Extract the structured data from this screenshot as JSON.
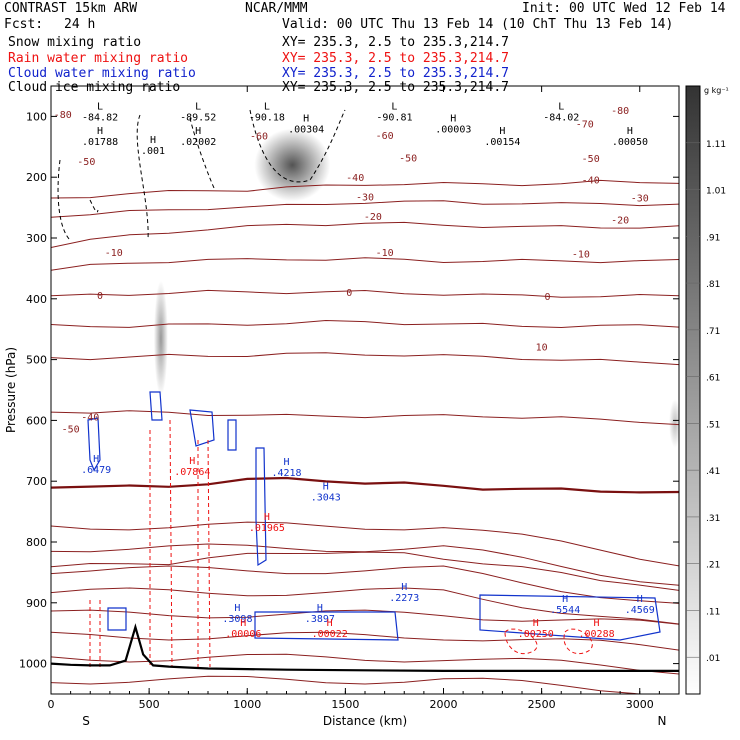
{
  "header": {
    "model": "CONTRAST 15km ARW",
    "org": "NCAR/MMM",
    "init": "Init: 00 UTC Wed 12 Feb 14",
    "fcst_label": "Fcst:",
    "fcst_value": "24 h",
    "valid": "Valid: 00 UTC Thu 13 Feb 14 (10 ChT Thu 13 Feb 14)"
  },
  "legend": [
    {
      "label": "Snow mixing ratio",
      "xy": "XY= 235.3,  2.5 to 235.3,214.7",
      "color": "#000000"
    },
    {
      "label": "Rain water mixing ratio",
      "xy": "XY= 235.3,  2.5 to 235.3,214.7",
      "color": "#ee1111"
    },
    {
      "label": "Cloud water mixing ratio",
      "xy": "XY= 235.3,  2.5 to 235.3,214.7",
      "color": "#1122cc"
    },
    {
      "label": "Cloud ice mixing ratio",
      "xy": "XY= 235.3,  2.5 to 235.3,214.7",
      "color": "#000000"
    }
  ],
  "chart_data": {
    "type": "contour-cross-section",
    "xlabel": "Distance (km)",
    "ylabel": "Pressure (hPa)",
    "xlim": [
      0,
      3200
    ],
    "ylim": [
      1050,
      50
    ],
    "x_ticks": [
      0,
      500,
      1000,
      1500,
      2000,
      2500,
      3000
    ],
    "y_ticks": [
      100,
      200,
      300,
      400,
      500,
      600,
      700,
      800,
      900,
      1000
    ],
    "x_end_labels": {
      "left": "S",
      "right": "N"
    },
    "colorbar": {
      "unit": "g kg⁻¹",
      "ticks": [
        ".01",
        ".11",
        ".21",
        ".31",
        ".41",
        ".51",
        ".61",
        ".71",
        ".81",
        ".91",
        "1.01",
        "1.11"
      ],
      "values": [
        0.01,
        0.11,
        0.21,
        0.31,
        0.41,
        0.51,
        0.61,
        0.71,
        0.81,
        0.91,
        1.01,
        1.11
      ]
    },
    "temperature_isotherms": [
      {
        "value": -80,
        "p": [
          112,
          110,
          108,
          106,
          104,
          104,
          102,
          100,
          98,
          98,
          98,
          98,
          98,
          98,
          96,
          96,
          96
        ]
      },
      {
        "value": -70,
        "p": [
          130,
          128,
          126,
          124,
          122,
          121,
          120,
          118,
          116,
          116,
          116,
          117,
          117,
          118,
          118,
          118,
          118
        ]
      },
      {
        "value": -60,
        "p": [
          160,
          154,
          150,
          146,
          143,
          141,
          139,
          138,
          137,
          138,
          139,
          140,
          141,
          141,
          141,
          141,
          141
        ]
      },
      {
        "value": -50,
        "p": [
          184,
          180,
          177,
          175,
          174,
          174,
          173,
          173,
          173,
          174,
          175,
          175,
          175,
          175,
          175,
          175,
          175
        ]
      },
      {
        "value": -40,
        "p": [
          211,
          209,
          208,
          207,
          206,
          206,
          206,
          206,
          206,
          207,
          208,
          209,
          210,
          210,
          210,
          210,
          210
        ]
      },
      {
        "value": -30,
        "p": [
          240,
          240,
          240,
          239,
          239,
          238,
          237,
          236,
          236,
          237,
          238,
          239,
          240,
          240,
          240,
          240,
          240
        ]
      },
      {
        "value": -20,
        "p": [
          272,
          272,
          271,
          270,
          270,
          269,
          268,
          268,
          268,
          269,
          270,
          271,
          272,
          274,
          275,
          276,
          277
        ]
      },
      {
        "value": -10,
        "p": [
          325,
          326,
          326,
          327,
          328,
          329,
          330,
          330,
          330,
          330,
          330,
          330,
          331,
          332,
          334,
          335,
          338
        ]
      },
      {
        "value": 0,
        "p": [
          400,
          401,
          401,
          400,
          397,
          394,
          393,
          394,
          397,
          398,
          400,
          402,
          403,
          404,
          405,
          405,
          407
        ]
      },
      {
        "value": 10,
        "p": [
          480,
          479,
          478,
          477,
          472,
          469,
          467,
          466,
          467,
          468,
          472,
          477,
          482,
          487,
          493,
          499,
          506
        ]
      }
    ],
    "isotherm_labels": [
      {
        "x": 60,
        "p": 103,
        "t": "-80"
      },
      {
        "x": 2900,
        "p": 96,
        "t": "-80"
      },
      {
        "x": 2720,
        "p": 118,
        "t": "-70"
      },
      {
        "x": 1060,
        "p": 138,
        "t": "-60"
      },
      {
        "x": 1700,
        "p": 137,
        "t": "-60"
      },
      {
        "x": 180,
        "p": 180,
        "t": "-50"
      },
      {
        "x": 1820,
        "p": 174,
        "t": "-50"
      },
      {
        "x": 2750,
        "p": 175,
        "t": "-50"
      },
      {
        "x": 1550,
        "p": 206,
        "t": "-40"
      },
      {
        "x": 2750,
        "p": 210,
        "t": "-40"
      },
      {
        "x": 1600,
        "p": 238,
        "t": "-30"
      },
      {
        "x": 3000,
        "p": 240,
        "t": "-30"
      },
      {
        "x": 1640,
        "p": 270,
        "t": "-20"
      },
      {
        "x": 2900,
        "p": 276,
        "t": "-20"
      },
      {
        "x": 320,
        "p": 330,
        "t": "-10"
      },
      {
        "x": 1700,
        "p": 330,
        "t": "-10"
      },
      {
        "x": 2700,
        "p": 332,
        "t": "-10"
      },
      {
        "x": 250,
        "p": 400,
        "t": "0"
      },
      {
        "x": 1520,
        "p": 395,
        "t": "0"
      },
      {
        "x": 2530,
        "p": 402,
        "t": "0"
      },
      {
        "x": 2500,
        "p": 485,
        "t": "10"
      },
      {
        "x": 200,
        "p": 600,
        "t": "-40"
      },
      {
        "x": 100,
        "p": 620,
        "t": "-50"
      }
    ],
    "extrema_labels": [
      {
        "x": 250,
        "p": 105,
        "kind": "L",
        "value": "-84.82"
      },
      {
        "x": 750,
        "p": 105,
        "kind": "L",
        "value": "-89.52"
      },
      {
        "x": 1100,
        "p": 105,
        "kind": "L",
        "value": "-90.18"
      },
      {
        "x": 1750,
        "p": 105,
        "kind": "L",
        "value": "-90.81"
      },
      {
        "x": 2600,
        "p": 105,
        "kind": "L",
        "value": "-84.02"
      },
      {
        "x": 250,
        "p": 145,
        "kind": "H",
        "value": ".01788"
      },
      {
        "x": 520,
        "p": 160,
        "kind": "H",
        "value": ".001"
      },
      {
        "x": 750,
        "p": 145,
        "kind": "H",
        "value": ".02002"
      },
      {
        "x": 1300,
        "p": 125,
        "kind": "H",
        "value": ".00304"
      },
      {
        "x": 2050,
        "p": 125,
        "kind": "H",
        "value": ".00003"
      },
      {
        "x": 2300,
        "p": 145,
        "kind": "H",
        "value": ".00154"
      },
      {
        "x": 2950,
        "p": 145,
        "kind": "H",
        "value": ".00050"
      },
      {
        "x": 230,
        "p": 685,
        "kind": "H",
        "value": ".6479"
      },
      {
        "x": 1200,
        "p": 690,
        "kind": "H",
        "value": ".4218"
      },
      {
        "x": 1400,
        "p": 730,
        "kind": "H",
        "value": ".3043"
      },
      {
        "x": 1800,
        "p": 895,
        "kind": "H",
        "value": ".2273"
      },
      {
        "x": 950,
        "p": 930,
        "kind": "H",
        "value": ".3098"
      },
      {
        "x": 1370,
        "p": 930,
        "kind": "H",
        "value": ".3897"
      },
      {
        "x": 2620,
        "p": 915,
        "kind": "H",
        "value": ".5544"
      },
      {
        "x": 3000,
        "p": 915,
        "kind": "H",
        "value": ".4569"
      },
      {
        "x": 720,
        "p": 688,
        "kind": "H",
        "value": ".07864"
      },
      {
        "x": 1100,
        "p": 780,
        "kind": "H",
        "value": ".01965"
      },
      {
        "x": 980,
        "p": 955,
        "kind": "H",
        "value": ".00006"
      },
      {
        "x": 1420,
        "p": 955,
        "kind": "H",
        "value": ".00022"
      },
      {
        "x": 2470,
        "p": 955,
        "kind": "H",
        "value": ".00250"
      },
      {
        "x": 2780,
        "p": 955,
        "kind": "H",
        "value": ".00288"
      }
    ],
    "shaded_snow": [
      {
        "x": 1230,
        "p_top": 120,
        "p_bot": 240,
        "max": 0.8
      },
      {
        "x": 560,
        "p_top": 370,
        "p_bot": 560,
        "max": 0.35
      },
      {
        "x": 3180,
        "p_top": 565,
        "p_bot": 645,
        "max": 0.12
      }
    ],
    "terrain": {
      "x": [
        0,
        100,
        200,
        300,
        380,
        430,
        470,
        520,
        600,
        800,
        1200,
        1600,
        2000,
        2400,
        2800,
        3200
      ],
      "p": [
        1000,
        1002,
        1003,
        1003,
        995,
        940,
        985,
        1003,
        1005,
        1008,
        1010,
        1011,
        1012,
        1012,
        1012,
        1012
      ]
    }
  }
}
